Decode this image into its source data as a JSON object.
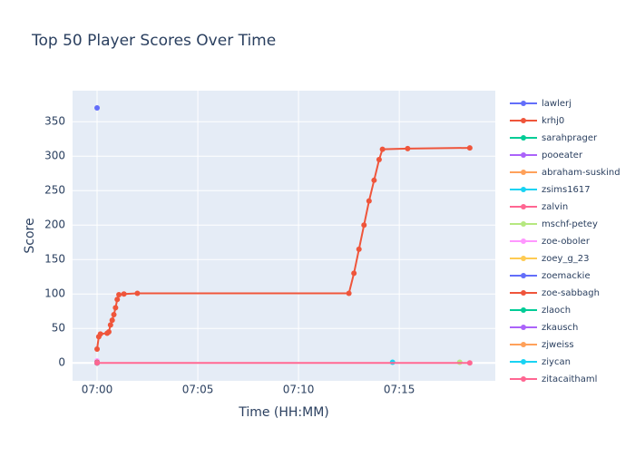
{
  "chart_data": {
    "type": "line",
    "title": "Top 50 Player Scores Over Time",
    "x_label": "Time (HH:MM)",
    "y_label": "Score",
    "xlim": [
      "06:58:47",
      "07:19:46"
    ],
    "xticks": [
      "07:00",
      "07:05",
      "07:10",
      "07:15"
    ],
    "ylim": [
      -26,
      395
    ],
    "yticks": [
      0,
      50,
      100,
      150,
      200,
      250,
      300,
      350
    ],
    "grid": true,
    "legend": "right",
    "series": [
      {
        "name": "lawlerj",
        "color": "#636efa",
        "x": [
          "07:00:00"
        ],
        "values": [
          0
        ]
      },
      {
        "name": "krhj0",
        "color": "#EF553B",
        "x": [
          "07:00:00",
          "07:00:05",
          "07:00:10",
          "07:00:30",
          "07:00:35",
          "07:00:40",
          "07:00:45",
          "07:00:50",
          "07:00:55",
          "07:01:00",
          "07:01:05",
          "07:01:20",
          "07:02:00",
          "07:12:30",
          "07:12:45",
          "07:13:00",
          "07:13:15",
          "07:13:30",
          "07:13:45",
          "07:14:00",
          "07:14:10",
          "07:15:25",
          "07:18:30"
        ],
        "values": [
          20,
          38,
          42,
          43,
          45,
          55,
          62,
          70,
          80,
          92,
          99,
          100,
          101,
          101,
          130,
          165,
          200,
          235,
          265,
          295,
          310,
          311,
          312
        ]
      },
      {
        "name": "sarahprager",
        "color": "#00cc96",
        "x": [
          "07:00:00"
        ],
        "values": [
          0
        ]
      },
      {
        "name": "pooeater",
        "color": "#ab63fa",
        "x": [
          "07:00:00"
        ],
        "values": [
          0
        ]
      },
      {
        "name": "abraham-suskind",
        "color": "#FFA15A",
        "x": [
          "07:00:00"
        ],
        "values": [
          0
        ]
      },
      {
        "name": "zsims1617",
        "color": "#19d3f3",
        "x": [
          "07:14:40"
        ],
        "values": [
          1
        ]
      },
      {
        "name": "zalvin",
        "color": "#FF6692",
        "x": [
          "07:00:00"
        ],
        "values": [
          0
        ]
      },
      {
        "name": "mschf-petey",
        "color": "#B6E880",
        "x": [
          "07:18:00"
        ],
        "values": [
          1
        ]
      },
      {
        "name": "zoe-oboler",
        "color": "#FF97FF",
        "x": [
          "07:00:00"
        ],
        "values": [
          3
        ]
      },
      {
        "name": "zoey_g_23",
        "color": "#FECB52",
        "x": [
          "07:00:00"
        ],
        "values": [
          0
        ]
      },
      {
        "name": "zoemackie",
        "color": "#636efa",
        "x": [
          "07:00:00"
        ],
        "values": [
          370
        ]
      },
      {
        "name": "zoe-sabbagh",
        "color": "#EF553B",
        "x": [
          "07:00:00"
        ],
        "values": [
          1
        ]
      },
      {
        "name": "zlaoch",
        "color": "#00cc96",
        "x": [
          "07:00:00"
        ],
        "values": [
          0
        ]
      },
      {
        "name": "zkausch",
        "color": "#ab63fa",
        "x": [
          "07:00:00"
        ],
        "values": [
          0
        ]
      },
      {
        "name": "zjweiss",
        "color": "#FFA15A",
        "x": [
          "07:00:00"
        ],
        "values": [
          0
        ]
      },
      {
        "name": "ziycan",
        "color": "#19d3f3",
        "x": [
          "07:00:00"
        ],
        "values": [
          0
        ]
      },
      {
        "name": "zitacaithaml",
        "color": "#FF6692",
        "x": [
          "07:00:00",
          "07:18:30"
        ],
        "values": [
          0,
          0
        ]
      }
    ]
  }
}
